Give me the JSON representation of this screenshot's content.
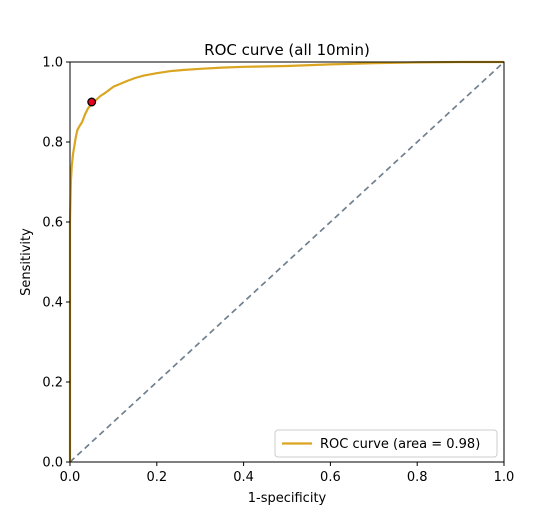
{
  "chart_data": {
    "type": "line",
    "title": "ROC curve (all 10min)",
    "xlabel": "1-specificity",
    "ylabel": "Sensitivity",
    "xlim": [
      0.0,
      1.0
    ],
    "ylim": [
      0.0,
      1.0
    ],
    "xticks": [
      "0.0",
      "0.2",
      "0.4",
      "0.6",
      "0.8",
      "1.0"
    ],
    "yticks": [
      "0.0",
      "0.2",
      "0.4",
      "0.6",
      "0.8",
      "1.0"
    ],
    "grid": false,
    "legend_position": "lower-right",
    "series": [
      {
        "name": "ROC curve (area = 0.98)",
        "color": "#daa520",
        "line_style": "solid",
        "x": [
          0.0,
          0.0,
          0.002,
          0.004,
          0.007,
          0.01,
          0.013,
          0.017,
          0.022,
          0.028,
          0.035,
          0.042,
          0.05,
          0.06,
          0.07,
          0.08,
          0.09,
          0.1,
          0.115,
          0.13,
          0.15,
          0.17,
          0.2,
          0.23,
          0.26,
          0.3,
          0.35,
          0.4,
          0.5,
          0.6,
          0.7,
          0.8,
          0.9,
          1.0
        ],
        "y": [
          0.0,
          0.6,
          0.7,
          0.74,
          0.77,
          0.79,
          0.81,
          0.83,
          0.84,
          0.85,
          0.87,
          0.885,
          0.895,
          0.905,
          0.915,
          0.922,
          0.93,
          0.938,
          0.945,
          0.952,
          0.96,
          0.966,
          0.972,
          0.977,
          0.98,
          0.983,
          0.986,
          0.988,
          0.99,
          0.994,
          0.997,
          0.999,
          1.0,
          1.0
        ]
      },
      {
        "name": "",
        "color": "#708090",
        "line_style": "dashed",
        "x": [
          0.0,
          1.0
        ],
        "y": [
          0.0,
          1.0
        ]
      }
    ],
    "markers": [
      {
        "x": 0.05,
        "y": 0.9,
        "fill": "#e8001c",
        "stroke": "#000000"
      }
    ]
  }
}
